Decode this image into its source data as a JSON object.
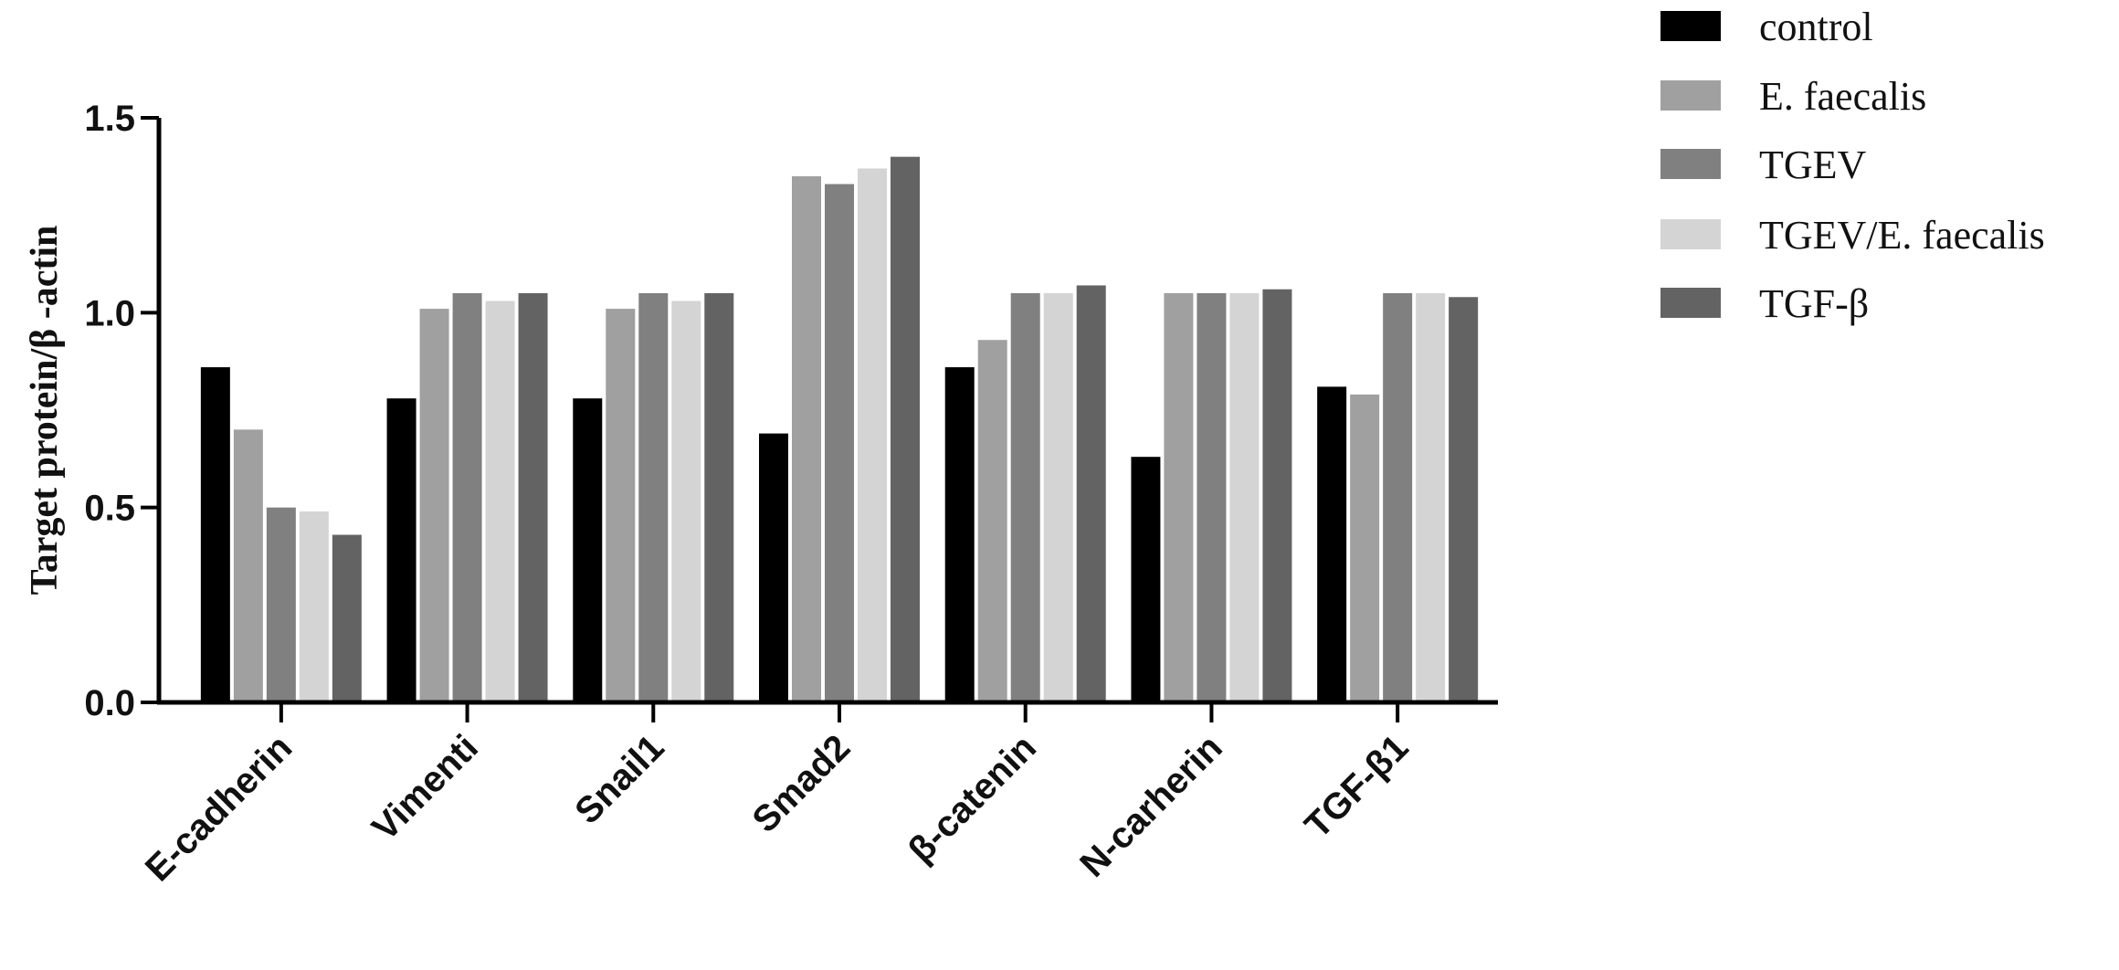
{
  "chart_data": {
    "type": "bar",
    "title": "",
    "xlabel": "",
    "ylabel": "Target protein/β -actin",
    "ylim": [
      0,
      1.5
    ],
    "yticks": [
      "0.0",
      "0.5",
      "1.0",
      "1.5"
    ],
    "grid": false,
    "legend_position": "top-right",
    "categories": [
      "E-cadherin",
      "Vimenti",
      "Snail1",
      "Smad2",
      "β-catenin",
      "N-carherin",
      "TGF-β1"
    ],
    "series": [
      {
        "name": "control",
        "color": "#000000",
        "values": [
          0.86,
          0.78,
          0.78,
          0.69,
          0.86,
          0.63,
          0.81
        ]
      },
      {
        "name": "E. faecalis",
        "color": "#a0a0a0",
        "values": [
          0.7,
          1.01,
          1.01,
          1.35,
          0.93,
          1.05,
          0.79
        ]
      },
      {
        "name": "TGEV",
        "color": "#808080",
        "values": [
          0.5,
          1.05,
          1.05,
          1.33,
          1.05,
          1.05,
          1.05
        ]
      },
      {
        "name": "TGEV/E. faecalis",
        "color": "#d4d4d4",
        "values": [
          0.49,
          1.03,
          1.03,
          1.37,
          1.05,
          1.05,
          1.05
        ]
      },
      {
        "name": "TGF-β",
        "color": "#636363",
        "values": [
          0.43,
          1.05,
          1.05,
          1.4,
          1.07,
          1.06,
          1.04
        ]
      }
    ]
  }
}
